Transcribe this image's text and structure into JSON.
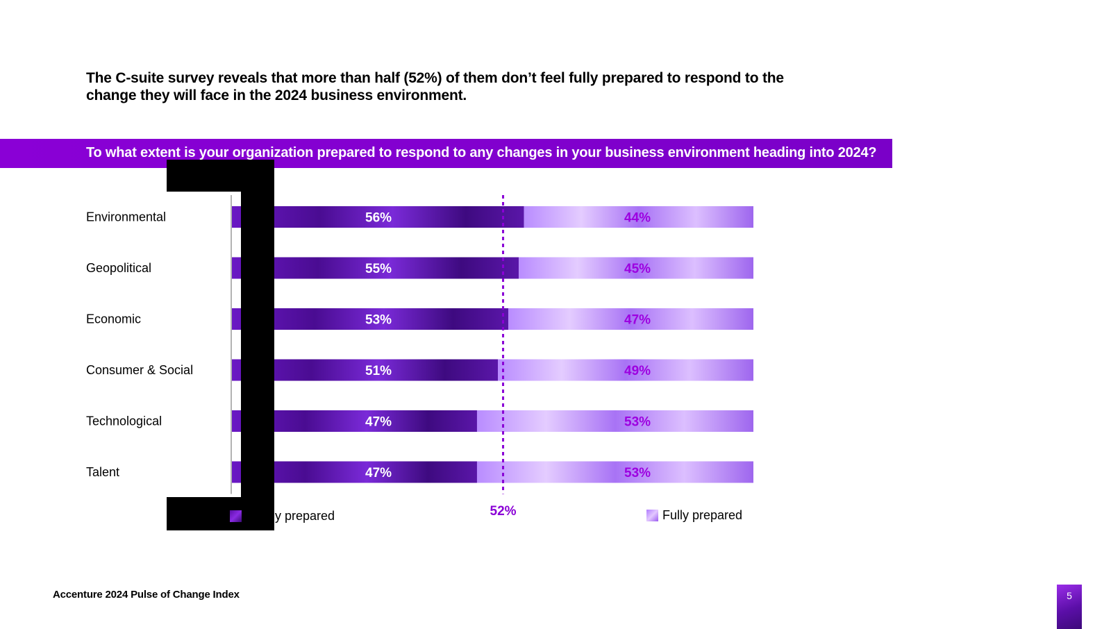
{
  "headline": "The C-suite survey reveals that more than half (52%) of them don’t feel fully prepared to respond to the change they will face in the 2024 business environment.",
  "question": "To what extent is your  organization prepared to respond to  any changes in your business environment heading into 2024?",
  "colors": {
    "accent": "#7b00d4",
    "not_fully_bar": "#5a12a6",
    "fully_bar": "#c7a2ff",
    "light_label": "#9d00e0",
    "divider": "#8a00d6"
  },
  "chart_data": {
    "type": "bar",
    "orientation": "horizontal-stacked",
    "categories": [
      "Environmental",
      "Geopolitical",
      "Economic",
      "Consumer & Social",
      "Technological",
      "Talent"
    ],
    "series": [
      {
        "name": "ully prepared",
        "values": [
          56,
          55,
          53,
          51,
          47,
          47
        ],
        "labels": [
          "56%",
          "55%",
          "53%",
          "51%",
          "47%",
          "47%"
        ]
      },
      {
        "name": "Fully prepared",
        "values": [
          44,
          45,
          47,
          49,
          53,
          53
        ],
        "labels": [
          "44%",
          "45%",
          "47%",
          "49%",
          "53%",
          "53%"
        ]
      }
    ],
    "xlim": [
      0,
      100
    ],
    "reference_line": {
      "value": 52,
      "label": "52%"
    },
    "legend": "bottom",
    "grid": false
  },
  "legend": {
    "not_fully_label": "ully prepared",
    "fully_label": "Fully prepared"
  },
  "footer": "Accenture 2024 Pulse of Change Index",
  "page_number": "5"
}
